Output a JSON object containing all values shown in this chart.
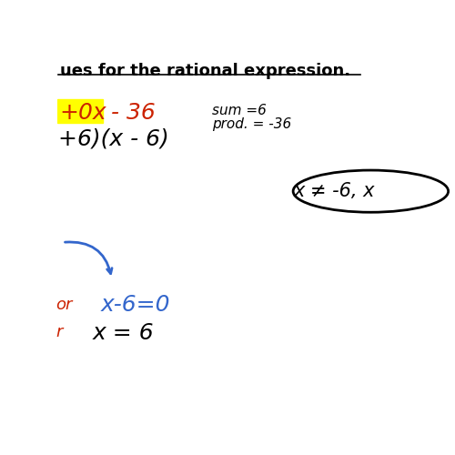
{
  "bg_color": "#ffffff",
  "title_text": "ues for the rational expression.",
  "highlight_color": "#ffff00",
  "highlight_text": "+0x",
  "red_text": " - 36",
  "line2_text": "+6)(x - 6)",
  "sum_text": "sum =6",
  "prod_text": "prod. = -36",
  "oval_text": "x ≠ -6, x",
  "blue_eq_text": "x-6=0",
  "black_sol_text": "x = 6",
  "red_label_eq": "or",
  "red_label_sol": "r",
  "title_fontsize": 13,
  "main_fontsize": 18,
  "small_fontsize": 11,
  "label_fontsize": 13,
  "blue_color": "#3366cc",
  "red_color": "#cc2200"
}
